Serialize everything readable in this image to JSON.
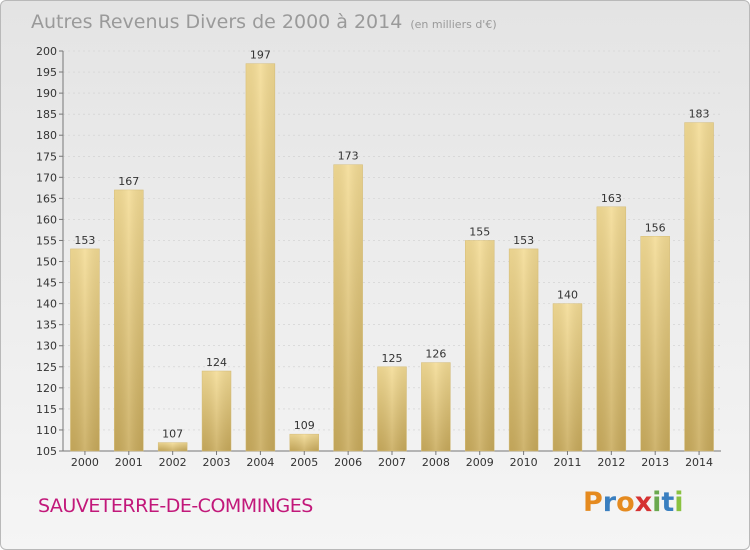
{
  "header": {
    "title": "Autres Revenus Divers de 2000 à 2014",
    "unit": "(en milliers d'€)"
  },
  "footer": {
    "commune": "SAUVETERRE-DE-COMMINGES",
    "logo_letters": [
      "P",
      "r",
      "o",
      "x",
      "i",
      "t",
      "i"
    ],
    "logo_colors": [
      "#e58a1f",
      "#3a7fc0",
      "#e58a1f",
      "#d53232",
      "#6aa84f",
      "#3a7fc0",
      "#8ac240"
    ]
  },
  "colors": {
    "bar_top": "#f4dc95",
    "bar_bottom": "#c9ab5c",
    "axis_text": "#333333",
    "grid": "#cfcfcf"
  },
  "chart_data": {
    "type": "bar",
    "categories": [
      "2000",
      "2001",
      "2002",
      "2003",
      "2004",
      "2005",
      "2006",
      "2007",
      "2008",
      "2009",
      "2010",
      "2011",
      "2012",
      "2013",
      "2014"
    ],
    "values": [
      153,
      167,
      107,
      124,
      197,
      109,
      173,
      125,
      126,
      155,
      153,
      140,
      163,
      156,
      183
    ],
    "ylim": [
      105,
      200
    ],
    "yticks": [
      105,
      110,
      115,
      120,
      125,
      130,
      135,
      140,
      145,
      150,
      155,
      160,
      165,
      170,
      175,
      180,
      185,
      190,
      195,
      200
    ],
    "grid": true,
    "title": "Autres Revenus Divers de 2000 à 2014",
    "xlabel": "",
    "ylabel": ""
  }
}
